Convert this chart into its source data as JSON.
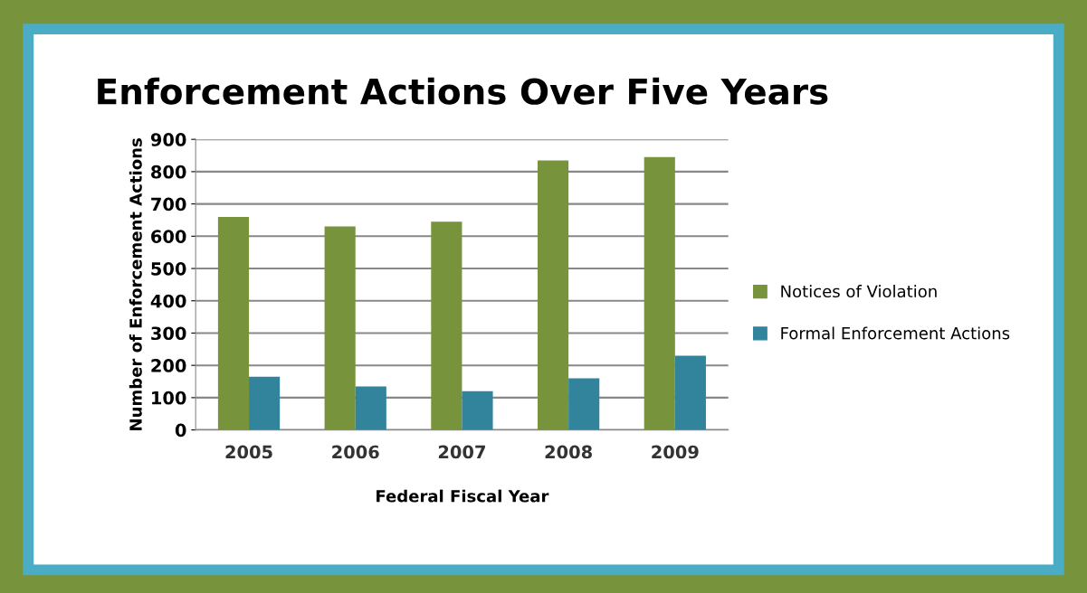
{
  "chart_data": {
    "type": "bar",
    "title": "Enforcement Actions Over Five Years",
    "xlabel": "Federal Fiscal Year",
    "ylabel": "Number of Enforcement Actions",
    "categories": [
      "2005",
      "2006",
      "2007",
      "2008",
      "2009"
    ],
    "series": [
      {
        "name": "Notices of Violation",
        "color": "#77933c",
        "values": [
          660,
          630,
          645,
          835,
          845
        ]
      },
      {
        "name": "Formal Enforcement Actions",
        "color": "#31849b",
        "values": [
          165,
          135,
          120,
          160,
          230
        ]
      }
    ],
    "ylim": [
      0,
      900
    ],
    "yticks": [
      0,
      100,
      200,
      300,
      400,
      500,
      600,
      700,
      800,
      900
    ],
    "grid": "y",
    "legend": "right"
  }
}
